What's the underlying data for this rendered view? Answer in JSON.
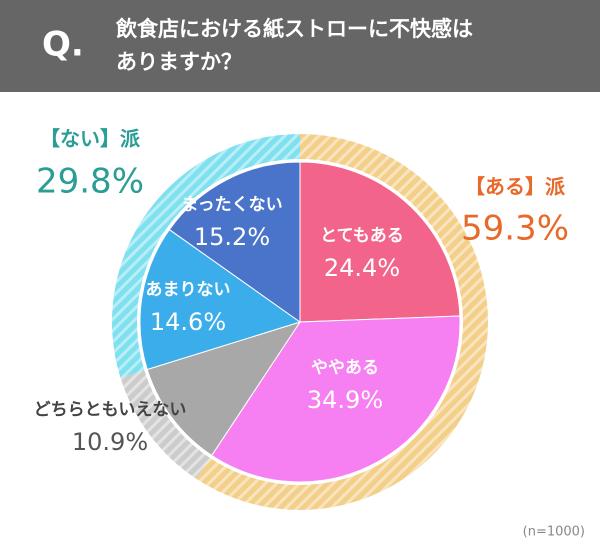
{
  "header": {
    "q": "Q.",
    "question_lines": [
      "飲食店における紙ストローに不快感は",
      "ありますか？"
    ]
  },
  "chart_data": {
    "type": "pie",
    "categories": [
      "とてもある",
      "ややある",
      "どちらともいえない",
      "あまりない",
      "まったくない"
    ],
    "values": [
      24.4,
      34.9,
      10.9,
      14.6,
      15.2
    ],
    "value_labels": [
      "24.4%",
      "34.9%",
      "10.9%",
      "14.6%",
      "15.2%"
    ],
    "colors": [
      "#f2648a",
      "#f67ff2",
      "#a8a8a8",
      "#3badea",
      "#4a74c9"
    ],
    "groups": [
      {
        "name": "【ある】派",
        "value": 59.3,
        "value_label": "59.3%",
        "color": "#f3cf8a",
        "text_color": "#e86a2b"
      },
      {
        "name": "【ない】派",
        "value": 29.8,
        "value_label": "29.8%",
        "color": "#7fe0ef",
        "text_color": "#2a9d94"
      }
    ],
    "ring_gap_color": "#cccccc",
    "note": "(n=1000)"
  }
}
